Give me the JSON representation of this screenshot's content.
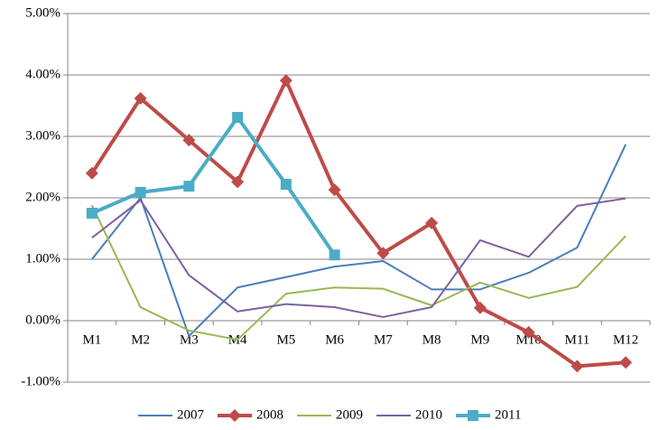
{
  "chart_data": {
    "type": "line",
    "categories": [
      "M1",
      "M2",
      "M3",
      "M4",
      "M5",
      "M6",
      "M7",
      "M8",
      "M9",
      "M10",
      "M11",
      "M12"
    ],
    "series": [
      {
        "name": "2007",
        "color": "#4a7ebb",
        "marker": null,
        "values": [
          1.0,
          2.0,
          -0.25,
          0.54,
          0.71,
          0.88,
          0.97,
          0.51,
          0.51,
          0.78,
          1.19,
          2.87
        ]
      },
      {
        "name": "2008",
        "color": "#be4b48",
        "marker": "diamond",
        "values": [
          2.4,
          3.62,
          2.94,
          2.26,
          3.91,
          2.13,
          1.1,
          1.59,
          0.21,
          -0.19,
          -0.74,
          -0.68
        ]
      },
      {
        "name": "2009",
        "color": "#98b954",
        "marker": null,
        "values": [
          1.88,
          0.22,
          -0.16,
          -0.31,
          0.44,
          0.54,
          0.52,
          0.25,
          0.62,
          0.37,
          0.55,
          1.38
        ]
      },
      {
        "name": "2010",
        "color": "#7d60a0",
        "marker": null,
        "values": [
          1.35,
          1.96,
          0.74,
          0.15,
          0.27,
          0.22,
          0.06,
          0.22,
          1.31,
          1.04,
          1.87,
          1.99
        ]
      },
      {
        "name": "2011",
        "color": "#4bacc6",
        "marker": "square",
        "values": [
          1.75,
          2.09,
          2.19,
          3.31,
          2.22,
          1.07,
          null,
          null,
          null,
          null,
          null,
          null
        ]
      }
    ],
    "ylim": [
      -1,
      5
    ],
    "yticks": [
      {
        "value": -1,
        "label": "-1.00%"
      },
      {
        "value": 0,
        "label": "0.00%"
      },
      {
        "value": 1,
        "label": "1.00%"
      },
      {
        "value": 2,
        "label": "2.00%"
      },
      {
        "value": 3,
        "label": "3.00%"
      },
      {
        "value": 4,
        "label": "4.00%"
      },
      {
        "value": 5,
        "label": "5.00%"
      }
    ],
    "grid": true,
    "legend": "bottom"
  }
}
